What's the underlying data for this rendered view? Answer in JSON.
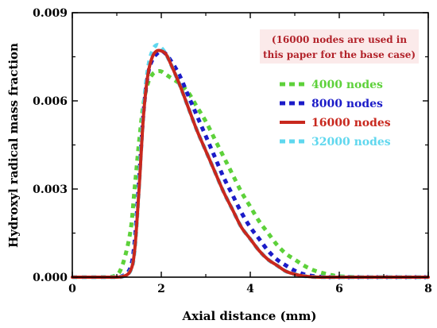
{
  "chart_data": {
    "type": "line",
    "title": "",
    "xlabel": "Axial distance (mm)",
    "ylabel": "Hydroxyl radical mass fraction",
    "xlim": [
      0,
      8
    ],
    "ylim": [
      0,
      0.009
    ],
    "xticks": [
      "0",
      "2",
      "4",
      "6",
      "8"
    ],
    "yticks": [
      "0.000",
      "0.003",
      "0.006",
      "0.009"
    ],
    "legend_position": "right",
    "annotation": [
      "(16000 nodes are used in",
      "this paper for the base case)"
    ],
    "x": [
      0,
      0.5,
      0.9,
      1.1,
      1.3,
      1.4,
      1.5,
      1.6,
      1.7,
      1.8,
      1.9,
      2.0,
      2.1,
      2.2,
      2.4,
      2.6,
      2.8,
      3.0,
      3.2,
      3.4,
      3.6,
      3.8,
      4.0,
      4.2,
      4.4,
      4.6,
      4.8,
      5.0,
      5.2,
      5.4,
      5.6,
      5.8,
      6.0,
      6.5,
      7.0,
      8.0
    ],
    "series": [
      {
        "name": "4000 nodes",
        "color": "#5dd13a",
        "dash": "dotted",
        "values": [
          0,
          0,
          2e-05,
          0.0003,
          0.0015,
          0.003,
          0.0046,
          0.0059,
          0.0066,
          0.0069,
          0.007,
          0.007,
          0.0069,
          0.0068,
          0.0066,
          0.0063,
          0.0058,
          0.0053,
          0.0047,
          0.0041,
          0.0035,
          0.0029,
          0.0024,
          0.0019,
          0.0015,
          0.0011,
          0.0008,
          0.0006,
          0.0004,
          0.00025,
          0.00015,
          8e-05,
          3e-05,
          0,
          0,
          0
        ]
      },
      {
        "name": "8000 nodes",
        "color": "#1b1bc8",
        "dash": "dotted",
        "values": [
          0,
          0,
          0,
          2e-05,
          0.0003,
          0.0012,
          0.0033,
          0.0056,
          0.0069,
          0.0074,
          0.0076,
          0.0077,
          0.0076,
          0.0074,
          0.0069,
          0.0062,
          0.0055,
          0.0048,
          0.0041,
          0.0034,
          0.0028,
          0.0022,
          0.0017,
          0.0013,
          0.0009,
          0.0006,
          0.0004,
          0.00022,
          0.0001,
          4e-05,
          1e-05,
          0,
          0,
          0,
          0,
          0
        ]
      },
      {
        "name": "16000 nodes",
        "color": "#c8281e",
        "dash": "solid",
        "values": [
          0,
          0,
          0,
          1e-05,
          0.0002,
          0.0009,
          0.003,
          0.0055,
          0.0069,
          0.0075,
          0.0077,
          0.0077,
          0.0076,
          0.0073,
          0.0066,
          0.0058,
          0.005,
          0.0043,
          0.0036,
          0.0029,
          0.0023,
          0.0017,
          0.0013,
          0.0009,
          0.0006,
          0.0004,
          0.0002,
          0.0001,
          4e-05,
          1e-05,
          0,
          0,
          0,
          0,
          0,
          0
        ]
      },
      {
        "name": "32000 nodes",
        "color": "#5fd7ee",
        "dash": "dotted",
        "values": [
          0,
          0,
          0,
          1e-05,
          0.0002,
          0.0009,
          0.0031,
          0.0057,
          0.0071,
          0.0077,
          0.0079,
          0.0078,
          0.0076,
          0.0073,
          0.0066,
          0.0058,
          0.005,
          0.0043,
          0.0036,
          0.0029,
          0.0023,
          0.0017,
          0.0013,
          0.0009,
          0.0006,
          0.0004,
          0.0002,
          0.0001,
          4e-05,
          1e-05,
          0,
          0,
          0,
          0,
          0,
          0
        ]
      }
    ]
  }
}
